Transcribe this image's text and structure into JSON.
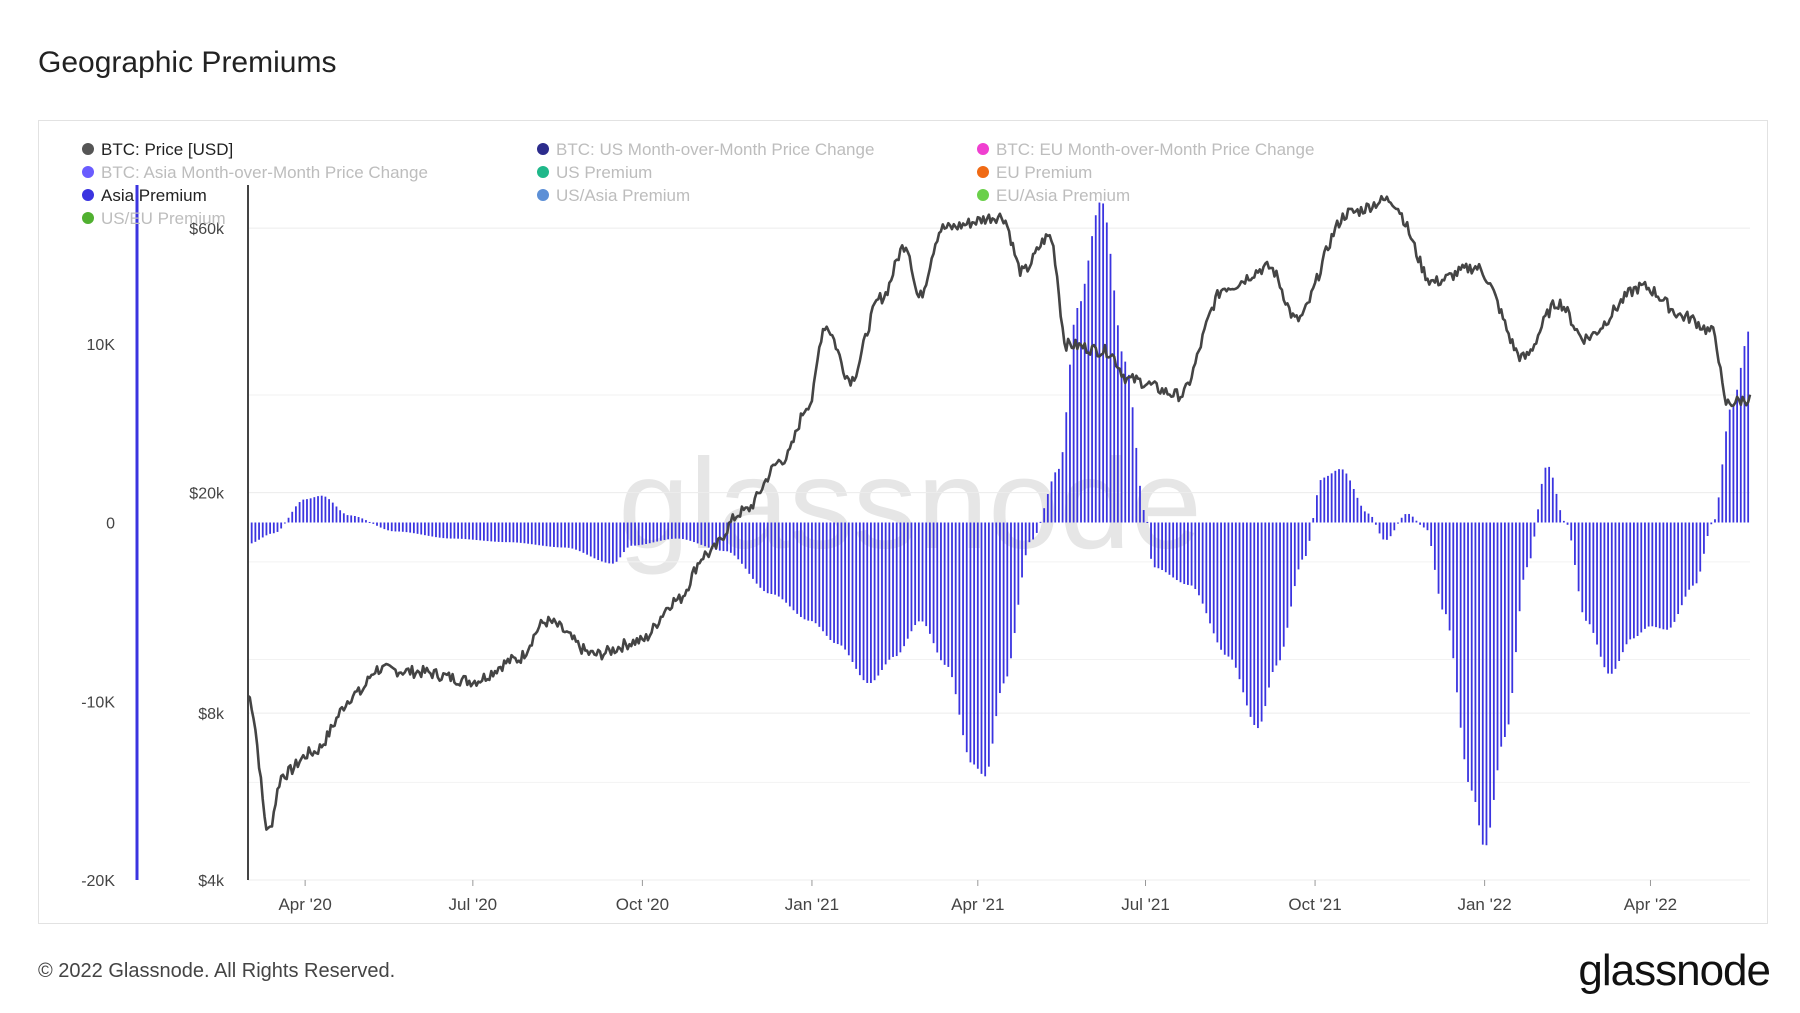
{
  "title": "Geographic Premiums",
  "footer": {
    "copyright": "© 2022 Glassnode. All Rights Reserved.",
    "logo": "glassnode",
    "watermark": "glassnode"
  },
  "legend": [
    {
      "label": "BTC: Price [USD]",
      "color": "#555555",
      "active": true
    },
    {
      "label": "BTC: US Month-over-Month Price Change",
      "color": "#2c2c8c",
      "active": false
    },
    {
      "label": "BTC: EU Month-over-Month Price Change",
      "color": "#f03fd0",
      "active": false
    },
    {
      "label": "BTC: Asia Month-over-Month Price Change",
      "color": "#6a5cff",
      "active": false
    },
    {
      "label": "US Premium",
      "color": "#1fb88a",
      "active": false
    },
    {
      "label": "EU Premium",
      "color": "#f06a14",
      "active": false
    },
    {
      "label": "Asia Premium",
      "color": "#3b34e0",
      "active": true
    },
    {
      "label": "US/Asia Premium",
      "color": "#5c8fd6",
      "active": false
    },
    {
      "label": "EU/Asia Premium",
      "color": "#6ad04a",
      "active": false
    },
    {
      "label": "US/EU Premium",
      "color": "#50b030",
      "active": false
    }
  ],
  "chart_data": {
    "type": "bar",
    "x_ticks": [
      "Apr '20",
      "Jul '20",
      "Oct '20",
      "Jan '21",
      "Apr '21",
      "Jul '21",
      "Oct '21",
      "Jan '22",
      "Apr '22"
    ],
    "premium_axis": {
      "ticks": [
        10000,
        0,
        -10000,
        -20000
      ],
      "tick_labels": [
        "10K",
        "0",
        "-10K",
        "-20K"
      ],
      "ylim": [
        -20000,
        20000
      ]
    },
    "price_axis": {
      "scale": "log",
      "ticks": [
        60000,
        20000,
        8000,
        4000
      ],
      "tick_labels": [
        "$60k",
        "$20k",
        "$8k",
        "$4k"
      ],
      "ylim": [
        4000,
        78000
      ]
    },
    "series": [
      {
        "name": "BTC: Price [USD]",
        "color": "#555555",
        "type": "line",
        "axis": "price",
        "points": [
          [
            "2020-03-01",
            8600
          ],
          [
            "2020-03-12",
            4900
          ],
          [
            "2020-03-20",
            6200
          ],
          [
            "2020-04-05",
            6800
          ],
          [
            "2020-04-30",
            8700
          ],
          [
            "2020-05-10",
            9600
          ],
          [
            "2020-06-01",
            9500
          ],
          [
            "2020-07-01",
            9150
          ],
          [
            "2020-07-25",
            10000
          ],
          [
            "2020-08-10",
            11700
          ],
          [
            "2020-09-05",
            10200
          ],
          [
            "2020-09-30",
            10800
          ],
          [
            "2020-10-20",
            12800
          ],
          [
            "2020-11-05",
            15500
          ],
          [
            "2020-11-25",
            18500
          ],
          [
            "2020-12-17",
            23000
          ],
          [
            "2020-12-31",
            29000
          ],
          [
            "2021-01-08",
            40000
          ],
          [
            "2021-01-22",
            32000
          ],
          [
            "2021-02-08",
            45000
          ],
          [
            "2021-02-21",
            56000
          ],
          [
            "2021-02-28",
            45000
          ],
          [
            "2021-03-13",
            60000
          ],
          [
            "2021-04-14",
            63000
          ],
          [
            "2021-04-25",
            50000
          ],
          [
            "2021-05-10",
            58000
          ],
          [
            "2021-05-19",
            37000
          ],
          [
            "2021-06-10",
            36000
          ],
          [
            "2021-06-22",
            32000
          ],
          [
            "2021-07-20",
            30000
          ],
          [
            "2021-08-14",
            47000
          ],
          [
            "2021-09-06",
            51000
          ],
          [
            "2021-09-21",
            41000
          ],
          [
            "2021-10-20",
            64000
          ],
          [
            "2021-11-10",
            67500
          ],
          [
            "2021-12-04",
            48000
          ],
          [
            "2021-12-27",
            51000
          ],
          [
            "2022-01-22",
            35000
          ],
          [
            "2022-02-10",
            44000
          ],
          [
            "2022-02-24",
            38000
          ],
          [
            "2022-03-28",
            47000
          ],
          [
            "2022-04-20",
            41500
          ],
          [
            "2022-05-05",
            39000
          ],
          [
            "2022-05-12",
            29000
          ],
          [
            "2022-05-25",
            29500
          ]
        ]
      },
      {
        "name": "Asia Premium",
        "color": "#3b34e0",
        "type": "bar",
        "axis": "premium",
        "points": [
          [
            "2020-03-01",
            -1200
          ],
          [
            "2020-03-15",
            -600
          ],
          [
            "2020-04-01",
            1300
          ],
          [
            "2020-04-10",
            1500
          ],
          [
            "2020-04-25",
            400
          ],
          [
            "2020-05-20",
            -500
          ],
          [
            "2020-06-20",
            -900
          ],
          [
            "2020-07-20",
            -1100
          ],
          [
            "2020-08-20",
            -1400
          ],
          [
            "2020-09-15",
            -2300
          ],
          [
            "2020-09-25",
            -1300
          ],
          [
            "2020-10-20",
            -900
          ],
          [
            "2020-11-15",
            -1600
          ],
          [
            "2020-12-10",
            -4000
          ],
          [
            "2020-12-31",
            -5500
          ],
          [
            "2021-01-15",
            -6800
          ],
          [
            "2021-02-01",
            -9000
          ],
          [
            "2021-02-15",
            -7500
          ],
          [
            "2021-03-01",
            -5500
          ],
          [
            "2021-03-15",
            -8000
          ],
          [
            "2021-03-29",
            -13500
          ],
          [
            "2021-04-05",
            -14200
          ],
          [
            "2021-04-15",
            -9000
          ],
          [
            "2021-04-30",
            -1000
          ],
          [
            "2021-05-15",
            3000
          ],
          [
            "2021-05-25",
            12000
          ],
          [
            "2021-06-07",
            18000
          ],
          [
            "2021-06-20",
            9000
          ],
          [
            "2021-07-01",
            500
          ],
          [
            "2021-07-05",
            -2500
          ],
          [
            "2021-07-25",
            -3500
          ],
          [
            "2021-08-15",
            -7500
          ],
          [
            "2021-08-31",
            -11500
          ],
          [
            "2021-09-10",
            -8000
          ],
          [
            "2021-09-25",
            -2000
          ],
          [
            "2021-10-05",
            2500
          ],
          [
            "2021-10-15",
            3000
          ],
          [
            "2021-10-30",
            500
          ],
          [
            "2021-11-08",
            -1000
          ],
          [
            "2021-11-20",
            500
          ],
          [
            "2021-11-30",
            -300
          ],
          [
            "2021-12-10",
            -5000
          ],
          [
            "2021-12-25",
            -15000
          ],
          [
            "2022-01-01",
            -18200
          ],
          [
            "2022-01-12",
            -12000
          ],
          [
            "2022-01-24",
            -2500
          ],
          [
            "2022-02-04",
            3200
          ],
          [
            "2022-02-14",
            0
          ],
          [
            "2022-02-25",
            -5500
          ],
          [
            "2022-03-10",
            -8500
          ],
          [
            "2022-03-22",
            -6500
          ],
          [
            "2022-04-01",
            -5800
          ],
          [
            "2022-04-10",
            -6000
          ],
          [
            "2022-04-25",
            -3500
          ],
          [
            "2022-05-05",
            0
          ],
          [
            "2022-05-15",
            6500
          ],
          [
            "2022-05-25",
            10800
          ]
        ]
      }
    ]
  }
}
